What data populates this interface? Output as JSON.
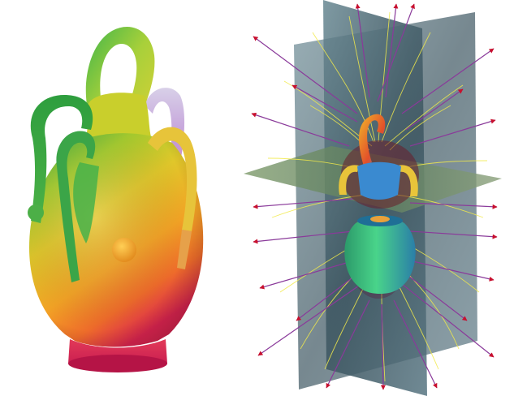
{
  "figure": {
    "panels": [
      {
        "id": "left",
        "subject": "vase",
        "coloring": "rainbow-gradient"
      },
      {
        "id": "right",
        "subject": "vase",
        "overlay": [
          "cut-planes",
          "streamlines",
          "vector-arrows"
        ]
      }
    ],
    "colors": {
      "vase_green": "#2ca84a",
      "vase_yellow": "#d8d02a",
      "vase_orange": "#f08a1c",
      "vase_red": "#e3344c",
      "vase_magenta": "#d2185a",
      "vase_violet": "#b88ad8",
      "plane_slate": "#5d7a86",
      "streamline_yellow": "#f2ea4a",
      "arrow_red": "#c8102e",
      "arrow_shaft_purple": "#8a3a9a"
    }
  }
}
